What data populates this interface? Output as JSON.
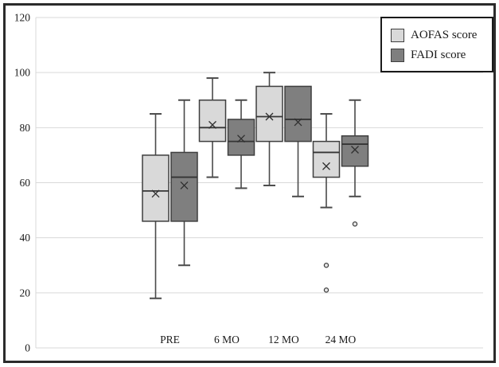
{
  "chart_data": {
    "type": "boxplot",
    "title": "",
    "categories": [
      "PRE",
      "6 MO",
      "12 MO",
      "24 MO"
    ],
    "xlabel": "",
    "ylabel": "",
    "ylim": [
      0,
      120
    ],
    "yticks": [
      0,
      20,
      40,
      60,
      80,
      100,
      120
    ],
    "grid": true,
    "legend_position": "top-right",
    "series": [
      {
        "name": "AOFAS score",
        "fill": "#d9d9d9",
        "boxes": [
          {
            "category": "PRE",
            "min": 18,
            "q1": 46,
            "median": 57,
            "mean": 56,
            "q3": 70,
            "max": 85,
            "outliers": []
          },
          {
            "category": "6 MO",
            "min": 62,
            "q1": 75,
            "median": 80,
            "mean": 81,
            "q3": 90,
            "max": 98,
            "outliers": []
          },
          {
            "category": "12 MO",
            "min": 59,
            "q1": 75,
            "median": 84,
            "mean": 84,
            "q3": 95,
            "max": 100,
            "outliers": []
          },
          {
            "category": "24 MO",
            "min": 51,
            "q1": 62,
            "median": 71,
            "mean": 66,
            "q3": 75,
            "max": 85,
            "outliers": [
              30,
              21
            ]
          }
        ]
      },
      {
        "name": "FADI score",
        "fill": "#7f7f7f",
        "boxes": [
          {
            "category": "PRE",
            "min": 30,
            "q1": 46,
            "median": 62,
            "mean": 59,
            "q3": 71,
            "max": 90,
            "outliers": []
          },
          {
            "category": "6 MO",
            "min": 58,
            "q1": 70,
            "median": 75,
            "mean": 76,
            "q3": 83,
            "max": 90,
            "outliers": []
          },
          {
            "category": "12 MO",
            "min": 55,
            "q1": 75,
            "median": 83,
            "mean": 82,
            "q3": 95,
            "max": 95,
            "outliers": []
          },
          {
            "category": "24 MO",
            "min": 55,
            "q1": 66,
            "median": 74,
            "mean": 72,
            "q3": 77,
            "max": 90,
            "outliers": [
              45
            ]
          }
        ]
      }
    ]
  },
  "colors": {
    "box_border": "#3f3f3f",
    "whisker": "#4a4a4a",
    "median": "#353535",
    "mean_marker": "#2f2f2f",
    "grid": "#d9d9d9",
    "text": "#1a1a1a",
    "frame": "#2b2b2b",
    "background": "#ffffff",
    "outlier_fill": "#e8e8e8"
  }
}
